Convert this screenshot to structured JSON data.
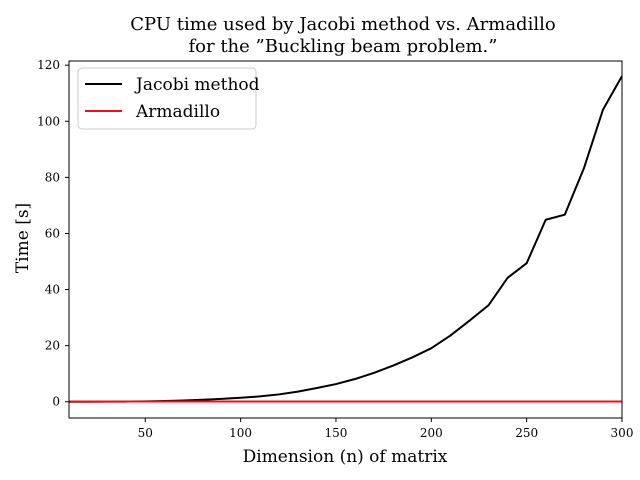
{
  "chart_data": {
    "type": "line",
    "title": [
      "CPU time used by Jacobi method vs. Armadillo",
      "for the ”Buckling beam problem.”"
    ],
    "xlabel": "Dimension (n) of matrix",
    "ylabel": "Time [s]",
    "xlim": [
      10,
      300
    ],
    "ylim": [
      -5.8,
      121.5
    ],
    "xticks": [
      50,
      100,
      150,
      200,
      250,
      300
    ],
    "yticks": [
      0,
      20,
      40,
      60,
      80,
      100,
      120
    ],
    "grid": false,
    "legend_position": "top-left",
    "series": [
      {
        "name": "Jacobi method",
        "color": "#000000",
        "x": [
          10,
          20,
          30,
          40,
          50,
          60,
          70,
          80,
          90,
          100,
          110,
          120,
          130,
          140,
          150,
          160,
          170,
          180,
          190,
          200,
          210,
          220,
          230,
          240,
          250,
          260,
          270,
          280,
          290,
          300
        ],
        "y": [
          0.0,
          0.01,
          0.03,
          0.06,
          0.13,
          0.25,
          0.45,
          0.7,
          1.0,
          1.4,
          1.9,
          2.6,
          3.6,
          4.9,
          6.3,
          8.1,
          10.3,
          12.9,
          15.8,
          19.1,
          23.6,
          28.9,
          34.4,
          44.2,
          49.4,
          64.9,
          66.7,
          83.2,
          104.1,
          116.1
        ]
      },
      {
        "name": "Armadillo",
        "color": "#ee1111",
        "x": [
          10,
          300
        ],
        "y": [
          0.1,
          0.1
        ]
      }
    ]
  }
}
